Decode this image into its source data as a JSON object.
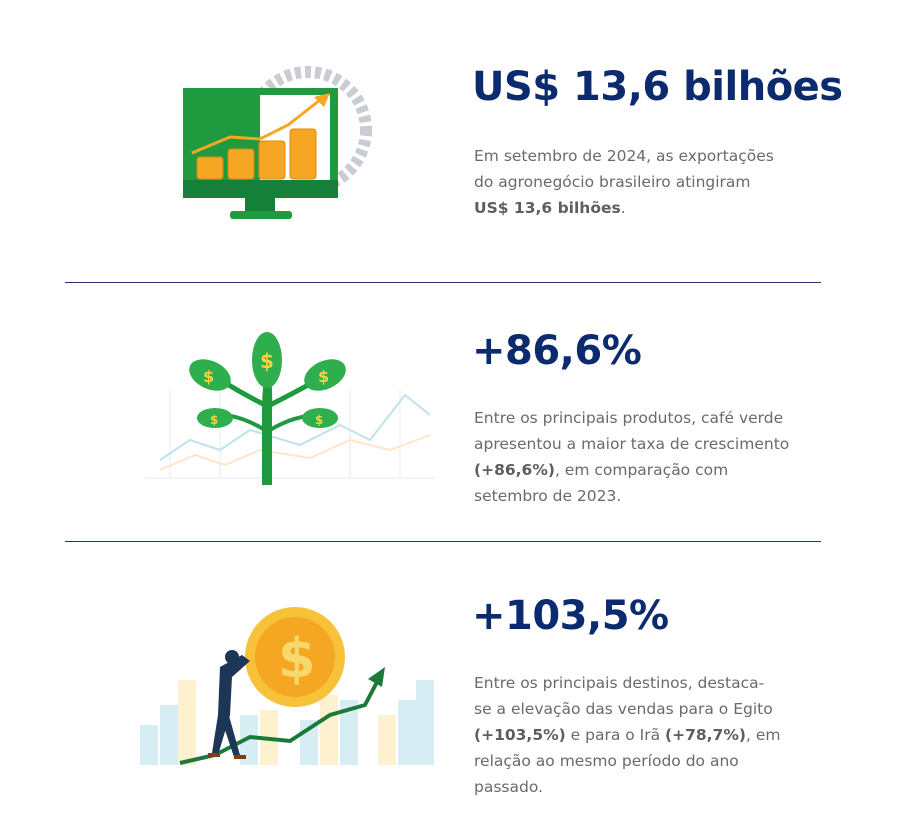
{
  "sections": [
    {
      "title": "US$ 13,6 bilhões",
      "lines": [
        [
          "Em setembro de 2024, as exportações"
        ],
        [
          "do agronegócio brasileiro atingiram"
        ],
        [
          "US$ 13,6 bilhões",
          "."
        ]
      ],
      "icon": "computer-chart-coins-icon"
    },
    {
      "title": "+86,6%",
      "lines": [
        [
          "Entre os principais produtos, café verde"
        ],
        [
          "apresentou a maior taxa de crescimento"
        ],
        [
          "(+86,6%)",
          ", em comparação com"
        ],
        [
          "setembro de 2023."
        ]
      ],
      "icon": "money-plant-icon"
    },
    {
      "title": "+103,5%",
      "lines": [
        [
          "Entre os principais destinos, destaca-"
        ],
        [
          "se a elevação das vendas para o Egito"
        ],
        [
          "(+103,5%)",
          " e para o Irã ",
          "(+78,7%)",
          ", em"
        ],
        [
          "relação ao mesmo período do ano"
        ],
        [
          "passado."
        ]
      ],
      "icon": "man-pushing-coin-icon"
    }
  ],
  "colors": {
    "title": "#0c2b6e",
    "text": "#6a6a6a",
    "green": "#1f9a3e",
    "gold": "#f5a623"
  }
}
